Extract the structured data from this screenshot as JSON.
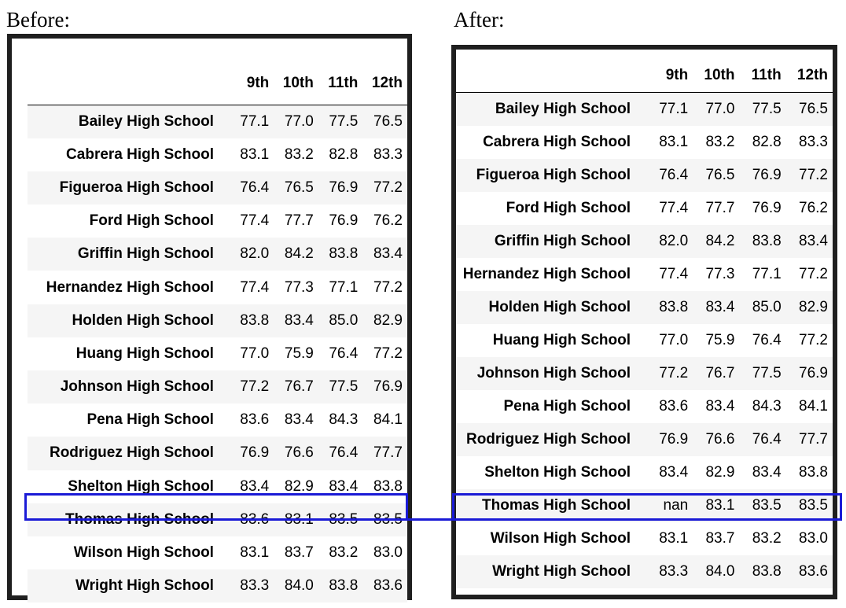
{
  "before": {
    "caption": "Before:",
    "headers": [
      "9th",
      "10th",
      "11th",
      "12th"
    ],
    "rows": [
      {
        "school": "Bailey High School",
        "values": [
          "77.1",
          "77.0",
          "77.5",
          "76.5"
        ]
      },
      {
        "school": "Cabrera High School",
        "values": [
          "83.1",
          "83.2",
          "82.8",
          "83.3"
        ]
      },
      {
        "school": "Figueroa High School",
        "values": [
          "76.4",
          "76.5",
          "76.9",
          "77.2"
        ]
      },
      {
        "school": "Ford High School",
        "values": [
          "77.4",
          "77.7",
          "76.9",
          "76.2"
        ]
      },
      {
        "school": "Griffin High School",
        "values": [
          "82.0",
          "84.2",
          "83.8",
          "83.4"
        ]
      },
      {
        "school": "Hernandez High School",
        "values": [
          "77.4",
          "77.3",
          "77.1",
          "77.2"
        ]
      },
      {
        "school": "Holden High School",
        "values": [
          "83.8",
          "83.4",
          "85.0",
          "82.9"
        ]
      },
      {
        "school": "Huang High School",
        "values": [
          "77.0",
          "75.9",
          "76.4",
          "77.2"
        ]
      },
      {
        "school": "Johnson High School",
        "values": [
          "77.2",
          "76.7",
          "77.5",
          "76.9"
        ]
      },
      {
        "school": "Pena High School",
        "values": [
          "83.6",
          "83.4",
          "84.3",
          "84.1"
        ]
      },
      {
        "school": "Rodriguez High School",
        "values": [
          "76.9",
          "76.6",
          "76.4",
          "77.7"
        ]
      },
      {
        "school": "Shelton High School",
        "values": [
          "83.4",
          "82.9",
          "83.4",
          "83.8"
        ]
      },
      {
        "school": "Thomas High School",
        "values": [
          "83.6",
          "83.1",
          "83.5",
          "83.5"
        ]
      },
      {
        "school": "Wilson High School",
        "values": [
          "83.1",
          "83.7",
          "83.2",
          "83.0"
        ]
      },
      {
        "school": "Wright High School",
        "values": [
          "83.3",
          "84.0",
          "83.8",
          "83.6"
        ]
      }
    ]
  },
  "after": {
    "caption": "After:",
    "headers": [
      "9th",
      "10th",
      "11th",
      "12th"
    ],
    "rows": [
      {
        "school": "Bailey High School",
        "values": [
          "77.1",
          "77.0",
          "77.5",
          "76.5"
        ]
      },
      {
        "school": "Cabrera High School",
        "values": [
          "83.1",
          "83.2",
          "82.8",
          "83.3"
        ]
      },
      {
        "school": "Figueroa High School",
        "values": [
          "76.4",
          "76.5",
          "76.9",
          "77.2"
        ]
      },
      {
        "school": "Ford High School",
        "values": [
          "77.4",
          "77.7",
          "76.9",
          "76.2"
        ]
      },
      {
        "school": "Griffin High School",
        "values": [
          "82.0",
          "84.2",
          "83.8",
          "83.4"
        ]
      },
      {
        "school": "Hernandez High School",
        "values": [
          "77.4",
          "77.3",
          "77.1",
          "77.2"
        ]
      },
      {
        "school": "Holden High School",
        "values": [
          "83.8",
          "83.4",
          "85.0",
          "82.9"
        ]
      },
      {
        "school": "Huang High School",
        "values": [
          "77.0",
          "75.9",
          "76.4",
          "77.2"
        ]
      },
      {
        "school": "Johnson High School",
        "values": [
          "77.2",
          "76.7",
          "77.5",
          "76.9"
        ]
      },
      {
        "school": "Pena High School",
        "values": [
          "83.6",
          "83.4",
          "84.3",
          "84.1"
        ]
      },
      {
        "school": "Rodriguez High School",
        "values": [
          "76.9",
          "76.6",
          "76.4",
          "77.7"
        ]
      },
      {
        "school": "Shelton High School",
        "values": [
          "83.4",
          "82.9",
          "83.4",
          "83.8"
        ]
      },
      {
        "school": "Thomas High School",
        "values": [
          "nan",
          "83.1",
          "83.5",
          "83.5"
        ]
      },
      {
        "school": "Wilson High School",
        "values": [
          "83.1",
          "83.7",
          "83.2",
          "83.0"
        ]
      },
      {
        "school": "Wright High School",
        "values": [
          "83.3",
          "84.0",
          "83.8",
          "83.6"
        ]
      }
    ]
  },
  "highlight_color": "#1a1ad6"
}
